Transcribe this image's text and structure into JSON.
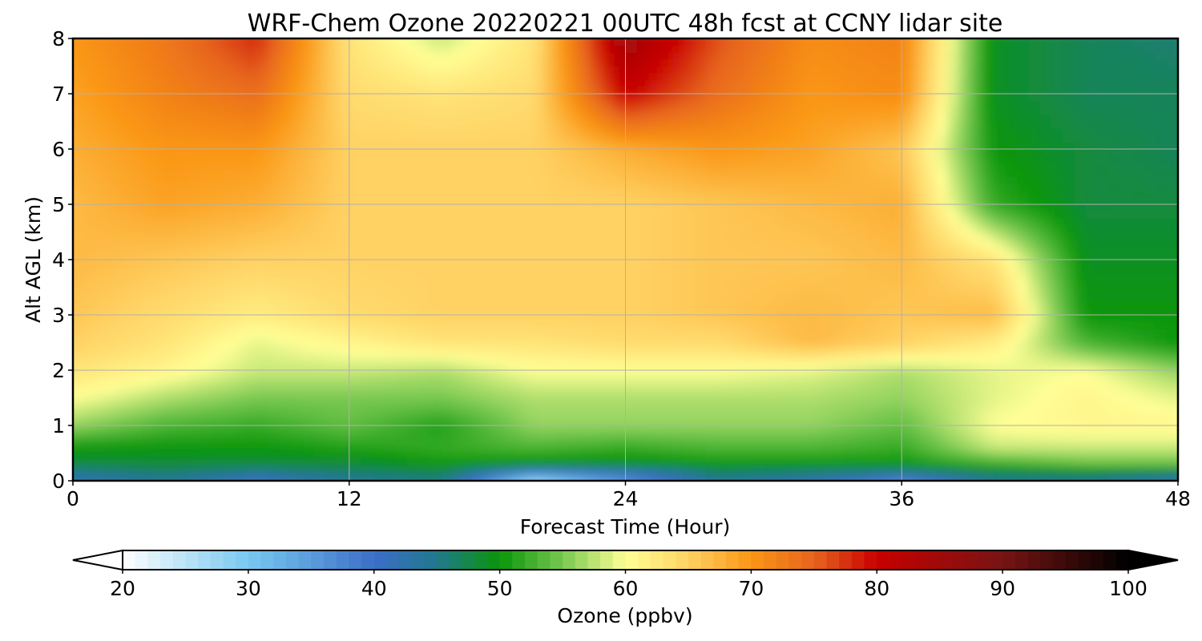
{
  "chart_data": {
    "type": "heatmap",
    "title": "WRF-Chem Ozone  20220221 00UTC 48h fcst at CCNY lidar site",
    "xlabel": "Forecast Time (Hour)",
    "ylabel": "Alt AGL (km)",
    "xlim": [
      0,
      48
    ],
    "ylim": [
      0,
      8
    ],
    "xticks": [
      0,
      12,
      24,
      36,
      48
    ],
    "yticks": [
      0,
      1,
      2,
      3,
      4,
      5,
      6,
      7,
      8
    ],
    "grid": true,
    "colorbar": {
      "label": "Ozone  (ppbv)",
      "range": [
        20,
        100
      ],
      "ticks": [
        20,
        30,
        40,
        50,
        60,
        70,
        80,
        90,
        100
      ],
      "extend": "both",
      "colormap": [
        [
          20,
          "#ffffff"
        ],
        [
          30,
          "#78c8f0"
        ],
        [
          40,
          "#3c6ec8"
        ],
        [
          45,
          "#20788c"
        ],
        [
          50,
          "#0a960a"
        ],
        [
          55,
          "#78c850"
        ],
        [
          60,
          "#ffff96"
        ],
        [
          65,
          "#ffd264"
        ],
        [
          70,
          "#fa9614"
        ],
        [
          75,
          "#e6641e"
        ],
        [
          80,
          "#c80000"
        ],
        [
          90,
          "#781414"
        ],
        [
          100,
          "#000000"
        ]
      ]
    },
    "x_hours": [
      0,
      4,
      8,
      12,
      16,
      20,
      24,
      28,
      32,
      36,
      40,
      44,
      48
    ],
    "altitudes_km": [
      0,
      0.15,
      0.3,
      0.6,
      1.0,
      1.5,
      2.0,
      2.5,
      3.0,
      4.0,
      5.0,
      6.0,
      7.0,
      8.0
    ],
    "values_ppbv": [
      [
        42,
        44,
        40,
        44,
        45,
        26,
        36,
        44,
        42,
        36,
        44,
        44,
        42
      ],
      [
        44,
        46,
        44,
        46,
        47,
        37,
        40,
        46,
        45,
        44,
        47,
        48,
        46
      ],
      [
        48,
        48,
        48,
        48,
        50,
        49,
        49,
        50,
        50,
        50,
        52,
        54,
        54
      ],
      [
        50,
        50,
        50,
        51,
        52,
        53,
        52,
        53,
        53,
        52,
        58,
        58,
        58
      ],
      [
        56,
        53,
        52,
        54,
        51,
        56,
        56,
        56,
        56,
        54,
        60,
        61,
        61
      ],
      [
        60,
        57,
        55,
        55,
        55,
        57,
        57,
        57,
        57,
        56,
        59,
        61,
        59
      ],
      [
        63,
        61,
        58,
        58,
        57,
        60,
        60,
        60,
        59,
        57,
        59,
        60,
        56
      ],
      [
        65,
        63,
        59,
        61,
        63,
        63,
        64,
        64,
        67,
        65,
        62,
        53,
        50
      ],
      [
        66,
        64,
        62,
        64,
        65,
        65,
        65,
        66,
        67,
        66,
        67,
        50,
        50
      ],
      [
        67,
        66,
        65,
        65,
        65,
        65,
        65,
        66,
        66,
        67,
        63,
        49,
        49
      ],
      [
        67,
        69,
        68,
        65,
        65,
        65,
        65,
        66,
        67,
        68,
        52,
        48,
        48
      ],
      [
        68,
        70,
        70,
        65,
        65,
        65,
        68,
        70,
        69,
        66,
        50,
        48,
        47
      ],
      [
        69,
        72,
        74,
        64,
        63,
        64,
        80,
        74,
        70,
        71,
        49,
        47,
        47
      ],
      [
        70,
        73,
        78,
        63,
        58,
        63,
        85,
        76,
        71,
        72,
        49,
        47,
        46
      ]
    ]
  }
}
